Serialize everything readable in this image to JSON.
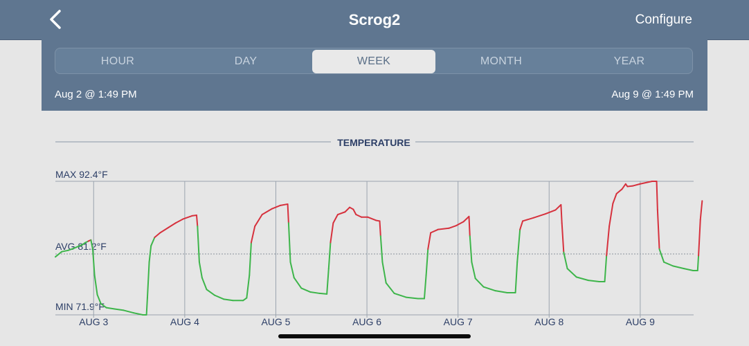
{
  "header": {
    "title": "Scrog2",
    "configure_label": "Configure",
    "back_icon": "chevron-left-icon"
  },
  "range_tabs": [
    {
      "label": "HOUR",
      "selected": false
    },
    {
      "label": "DAY",
      "selected": false
    },
    {
      "label": "WEEK",
      "selected": true
    },
    {
      "label": "MONTH",
      "selected": false
    },
    {
      "label": "YEAR",
      "selected": false
    }
  ],
  "range": {
    "start": "Aug 2 @ 1:49 PM",
    "end": "Aug 9 @ 1:49 PM"
  },
  "colors": {
    "header_bg": "#5f7690",
    "above_avg": "#d6313d",
    "below_avg": "#3db54a"
  },
  "chart_data": {
    "type": "line",
    "title": "TEMPERATURE",
    "max_label": "MAX 92.4°F",
    "avg_label": "AVG 81.2°F",
    "min_label": "MIN 71.9°F",
    "ylim": [
      71.9,
      92.4
    ],
    "avg": 81.2,
    "x_ticks": [
      "AUG 3",
      "AUG 4",
      "AUG 5",
      "AUG 6",
      "AUG 7",
      "AUG 8",
      "AUG 9"
    ],
    "x_unit": "days since start (Aug 2 @ 1:49 PM)",
    "series": [
      {
        "points": [
          [
            0.0,
            80.8
          ],
          [
            0.07,
            81.6
          ],
          [
            0.14,
            81.8
          ],
          [
            0.2,
            82.1
          ],
          [
            0.25,
            82.4
          ],
          [
            0.3,
            82.7
          ],
          [
            0.33,
            83.0
          ],
          [
            0.36,
            83.2
          ],
          [
            0.39,
            83.4
          ],
          [
            0.41,
            82.0
          ],
          [
            0.43,
            78.0
          ],
          [
            0.46,
            75.0
          ],
          [
            0.5,
            73.6
          ],
          [
            0.56,
            73.0
          ],
          [
            0.65,
            72.8
          ],
          [
            0.75,
            72.6
          ],
          [
            0.86,
            72.2
          ],
          [
            0.96,
            71.9
          ],
          [
            1.0,
            71.9
          ],
          [
            1.01,
            74.5
          ],
          [
            1.03,
            80.0
          ],
          [
            1.05,
            82.5
          ],
          [
            1.09,
            83.8
          ],
          [
            1.15,
            84.5
          ],
          [
            1.24,
            85.3
          ],
          [
            1.32,
            86.0
          ],
          [
            1.4,
            86.6
          ],
          [
            1.5,
            87.1
          ],
          [
            1.55,
            87.2
          ],
          [
            1.56,
            85.5
          ],
          [
            1.58,
            80.0
          ],
          [
            1.61,
            77.6
          ],
          [
            1.66,
            75.8
          ],
          [
            1.75,
            74.9
          ],
          [
            1.85,
            74.3
          ],
          [
            1.95,
            74.1
          ],
          [
            2.06,
            74.1
          ],
          [
            2.1,
            74.5
          ],
          [
            2.13,
            78.0
          ],
          [
            2.15,
            83.0
          ],
          [
            2.19,
            85.5
          ],
          [
            2.27,
            87.3
          ],
          [
            2.38,
            88.2
          ],
          [
            2.47,
            88.7
          ],
          [
            2.55,
            88.9
          ],
          [
            2.56,
            86.0
          ],
          [
            2.58,
            80.0
          ],
          [
            2.62,
            77.6
          ],
          [
            2.7,
            76.0
          ],
          [
            2.8,
            75.4
          ],
          [
            2.9,
            75.2
          ],
          [
            2.98,
            75.1
          ],
          [
            3.0,
            79.0
          ],
          [
            3.02,
            83.0
          ],
          [
            3.05,
            86.0
          ],
          [
            3.1,
            87.3
          ],
          [
            3.18,
            87.7
          ],
          [
            3.23,
            88.4
          ],
          [
            3.27,
            88.1
          ],
          [
            3.3,
            87.3
          ],
          [
            3.36,
            86.9
          ],
          [
            3.43,
            86.9
          ],
          [
            3.52,
            86.4
          ],
          [
            3.56,
            86.3
          ],
          [
            3.57,
            84.0
          ],
          [
            3.59,
            80.0
          ],
          [
            3.63,
            76.8
          ],
          [
            3.72,
            75.2
          ],
          [
            3.85,
            74.6
          ],
          [
            3.98,
            74.4
          ],
          [
            4.05,
            74.4
          ],
          [
            4.07,
            78.0
          ],
          [
            4.09,
            82.0
          ],
          [
            4.12,
            84.5
          ],
          [
            4.2,
            85.0
          ],
          [
            4.32,
            85.2
          ],
          [
            4.4,
            85.6
          ],
          [
            4.48,
            86.2
          ],
          [
            4.54,
            87.0
          ],
          [
            4.55,
            84.0
          ],
          [
            4.57,
            80.0
          ],
          [
            4.61,
            77.5
          ],
          [
            4.7,
            76.2
          ],
          [
            4.83,
            75.6
          ],
          [
            4.96,
            75.3
          ],
          [
            5.05,
            75.3
          ],
          [
            5.07,
            80.0
          ],
          [
            5.1,
            85.0
          ],
          [
            5.13,
            86.3
          ],
          [
            5.25,
            86.8
          ],
          [
            5.38,
            87.4
          ],
          [
            5.49,
            88.0
          ],
          [
            5.55,
            88.8
          ],
          [
            5.56,
            86.0
          ],
          [
            5.58,
            81.5
          ],
          [
            5.62,
            79.0
          ],
          [
            5.72,
            77.7
          ],
          [
            5.85,
            77.2
          ],
          [
            5.97,
            77.0
          ],
          [
            6.03,
            77.0
          ],
          [
            6.05,
            81.0
          ],
          [
            6.08,
            85.5
          ],
          [
            6.12,
            89.0
          ],
          [
            6.16,
            90.5
          ],
          [
            6.22,
            91.2
          ],
          [
            6.26,
            92.0
          ],
          [
            6.28,
            91.6
          ],
          [
            6.34,
            91.7
          ],
          [
            6.42,
            92.0
          ],
          [
            6.55,
            92.4
          ],
          [
            6.6,
            92.4
          ],
          [
            6.61,
            88.0
          ],
          [
            6.63,
            82.0
          ],
          [
            6.68,
            80.0
          ],
          [
            6.78,
            79.4
          ],
          [
            6.9,
            79.0
          ],
          [
            7.0,
            78.7
          ],
          [
            7.05,
            78.7
          ],
          [
            7.06,
            81.0
          ],
          [
            7.08,
            86.5
          ],
          [
            7.1,
            89.4
          ]
        ]
      }
    ]
  }
}
